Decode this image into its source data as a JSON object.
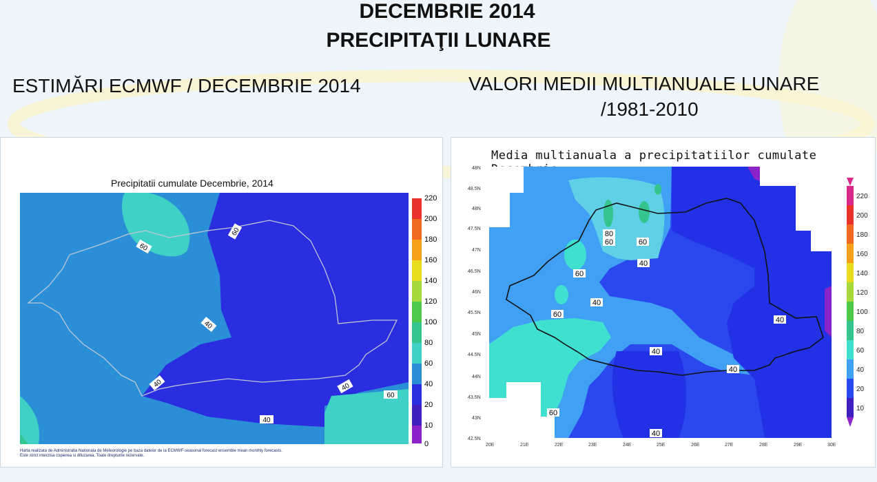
{
  "header": {
    "title_line1": "DECEMBRIE 2014",
    "title_line2": "PRECIPITAŢII LUNARE"
  },
  "left": {
    "heading": "ESTIMĂRI ECMWF / DECEMBRIE 2014",
    "map_title": "Precipitatii cumulate Decembrie, 2014",
    "footer_line1": "Harta realizata de Administratia Nationala de Meteorologie pe baza datelor de la ECMWF-seasonal forecast ensemble mean monthly forecasts.",
    "footer_line2": "Este strict interzisa copierea si difuzarea. Toate drepturile rezervate.",
    "contour_labels": [
      "60",
      "60",
      "40",
      "40",
      "40",
      "60",
      "40"
    ],
    "legend_values": [
      "220",
      "200",
      "180",
      "160",
      "140",
      "120",
      "100",
      "80",
      "60",
      "40",
      "20",
      "10",
      "0"
    ]
  },
  "right": {
    "heading_line1": "VALORI MEDII MULTIANUALE LUNARE",
    "heading_line2": "/1981-2010",
    "map_title": "Media multianuala a precipitatiilor cumulate Decembrie",
    "contour_labels": [
      "80",
      "60",
      "60",
      "40",
      "60",
      "40",
      "60",
      "40",
      "40",
      "40",
      "60",
      "40"
    ],
    "lat_ticks": [
      "48N",
      "48.5N",
      "48N",
      "47.5N",
      "47N",
      "46.5N",
      "46N",
      "45.5N",
      "45N",
      "44.5N",
      "44N",
      "43.5N",
      "43N",
      "42.5N"
    ],
    "lon_ticks": [
      "20E",
      "21E",
      "22E",
      "23E",
      "24E",
      "25E",
      "26E",
      "27E",
      "28E",
      "29E",
      "30E"
    ],
    "legend_values": [
      "220",
      "200",
      "180",
      "160",
      "140",
      "120",
      "100",
      "80",
      "60",
      "40",
      "20",
      "10"
    ]
  },
  "colors": {
    "level_20_40": "#2a2ee0",
    "level_40_60": "#2a8fd6",
    "level_60_80": "#3fd0c6",
    "level_80_100": "#34c58f",
    "right_low": "#2b48ee",
    "right_mid": "#3fa0f4",
    "right_high": "#40e0d0"
  }
}
